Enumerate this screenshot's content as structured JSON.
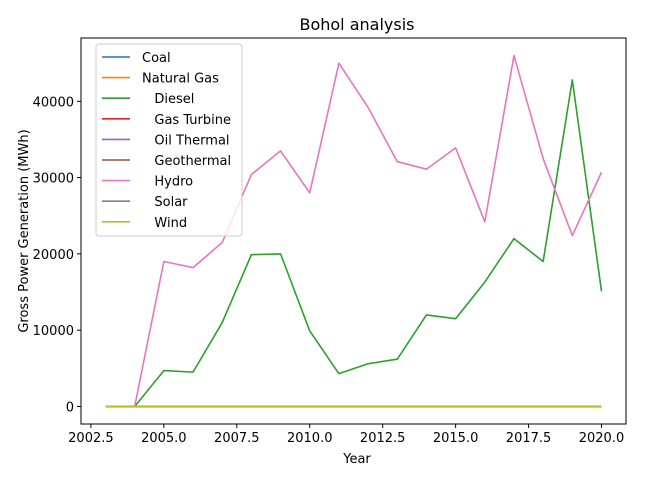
{
  "chart_data": {
    "type": "line",
    "title": "Bohol analysis",
    "xlabel": "Year",
    "ylabel": "Gross Power Generation (MWh)",
    "xlim": [
      2002.16,
      2020.84
    ],
    "ylim": [
      -2300,
      48300
    ],
    "xticks": [
      2002.5,
      2005.0,
      2007.5,
      2010.0,
      2012.5,
      2015.0,
      2017.5,
      2020.0
    ],
    "xtick_labels": [
      "2002.5",
      "2005.0",
      "2007.5",
      "2010.0",
      "2012.5",
      "2015.0",
      "2017.5",
      "2020.0"
    ],
    "yticks": [
      0,
      10000,
      20000,
      30000,
      40000
    ],
    "ytick_labels": [
      "0",
      "10000",
      "20000",
      "30000",
      "40000"
    ],
    "grid": false,
    "legend_position": "top-left",
    "x": [
      2003,
      2004,
      2005,
      2006,
      2007,
      2008,
      2009,
      2010,
      2011,
      2012,
      2013,
      2014,
      2015,
      2016,
      2017,
      2018,
      2019,
      2020
    ],
    "series": [
      {
        "name": "Coal",
        "color": "#1f77b4",
        "values": [
          0,
          0,
          0,
          0,
          0,
          0,
          0,
          0,
          0,
          0,
          0,
          0,
          0,
          0,
          0,
          0,
          0,
          0
        ]
      },
      {
        "name": "Natural Gas",
        "color": "#ff7f0e",
        "values": [
          0,
          0,
          0,
          0,
          0,
          0,
          0,
          0,
          0,
          0,
          0,
          0,
          0,
          0,
          0,
          0,
          0,
          0
        ]
      },
      {
        "name": "   Diesel",
        "color": "#2ca02c",
        "values": [
          0,
          0,
          4700,
          4500,
          11000,
          19900,
          20000,
          9900,
          4300,
          5600,
          6200,
          12000,
          11500,
          16300,
          22000,
          19000,
          42800,
          15100
        ]
      },
      {
        "name": "   Gas Turbine",
        "color": "#d62728",
        "values": [
          0,
          0,
          0,
          0,
          0,
          0,
          0,
          0,
          0,
          0,
          0,
          0,
          0,
          0,
          0,
          0,
          0,
          0
        ]
      },
      {
        "name": "   Oil Thermal",
        "color": "#9467bd",
        "values": [
          0,
          0,
          0,
          0,
          0,
          0,
          0,
          0,
          0,
          0,
          0,
          0,
          0,
          0,
          0,
          0,
          0,
          0
        ]
      },
      {
        "name": "   Geothermal",
        "color": "#8c564b",
        "values": [
          0,
          0,
          0,
          0,
          0,
          0,
          0,
          0,
          0,
          0,
          0,
          0,
          0,
          0,
          0,
          0,
          0,
          0
        ]
      },
      {
        "name": "   Hydro",
        "color": "#e377c2",
        "values": [
          0,
          0,
          19000,
          18200,
          21500,
          30400,
          33500,
          28000,
          45000,
          39200,
          32100,
          31100,
          33900,
          24200,
          46000,
          32500,
          22400,
          30700
        ]
      },
      {
        "name": "   Solar",
        "color": "#7f7f7f",
        "values": [
          0,
          0,
          0,
          0,
          0,
          0,
          0,
          0,
          0,
          0,
          0,
          0,
          0,
          0,
          0,
          0,
          0,
          0
        ]
      },
      {
        "name": "   Wind",
        "color": "#bcbd22",
        "values": [
          0,
          0,
          0,
          0,
          0,
          0,
          0,
          0,
          0,
          0,
          0,
          0,
          0,
          0,
          0,
          0,
          0,
          0
        ]
      }
    ]
  }
}
